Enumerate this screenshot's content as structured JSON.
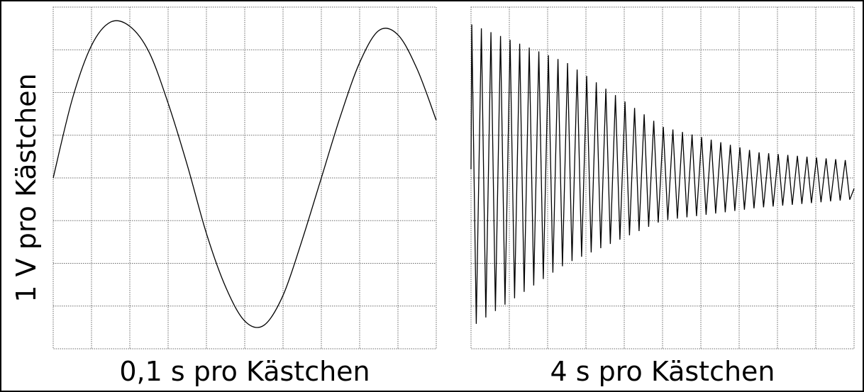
{
  "ylabel": "1 V pro Kästchen",
  "chart_data": [
    {
      "type": "line",
      "xlabel": "0,1 s pro Kästchen",
      "grid": true,
      "grid_divisions": {
        "x": 10,
        "y": 8
      },
      "xlim": [
        0,
        1.0
      ],
      "ylim": [
        -4,
        4
      ],
      "series": [
        {
          "x": [
            0,
            0.05,
            0.1,
            0.15,
            0.2,
            0.25,
            0.3,
            0.35,
            0.4,
            0.45,
            0.5,
            0.55,
            0.6,
            0.65,
            0.7,
            0.75,
            0.8,
            0.85,
            0.9,
            0.95,
            1.0
          ],
          "values": [
            0.0,
            1.85,
            3.1,
            3.65,
            3.55,
            2.95,
            1.75,
            0.3,
            -1.3,
            -2.55,
            -3.35,
            -3.45,
            -2.75,
            -1.45,
            0.0,
            1.45,
            2.7,
            3.45,
            3.35,
            2.55,
            1.35
          ]
        }
      ]
    },
    {
      "type": "line",
      "xlabel": "4 s pro Kästchen",
      "grid": true,
      "grid_divisions": {
        "x": 10,
        "y": 8
      },
      "xlim": [
        0,
        40
      ],
      "ylim": [
        -4,
        4
      ],
      "series": [
        {
          "description": "damped oscillation",
          "cycles": 40,
          "start": 0.2,
          "envelope_max": {
            "x": [
              0,
              10,
              20,
              30,
              40
            ],
            "y": [
              3.6,
              2.7,
              1.2,
              0.6,
              0.4
            ]
          },
          "envelope_min": {
            "x": [
              0,
              10,
              20,
              30,
              40
            ],
            "y": [
              -3.5,
              -2.0,
              -1.0,
              -0.7,
              -0.5
            ]
          }
        }
      ]
    }
  ]
}
